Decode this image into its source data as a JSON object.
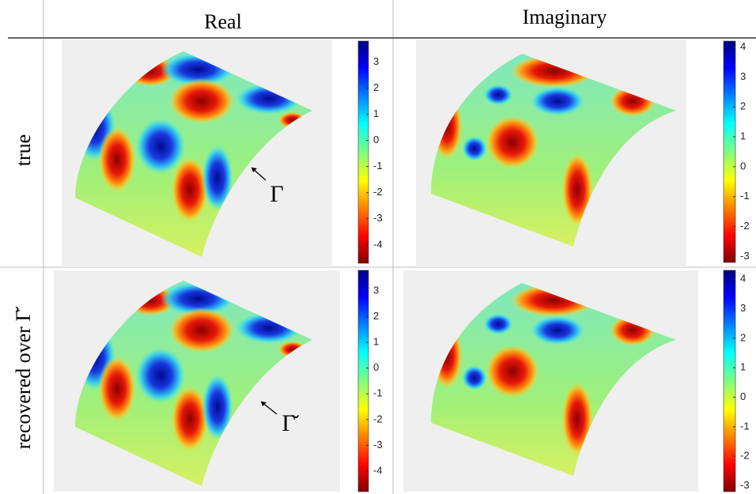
{
  "header": {
    "columns": [
      "Real",
      "Imaginary"
    ]
  },
  "rows": [
    "true",
    "recovered over Γ̆"
  ],
  "panels": [
    {
      "colorbar": {
        "clim": [
          -4.7,
          3.8
        ],
        "ticks": [
          3,
          2,
          1,
          0,
          -1,
          -2,
          -3,
          -4
        ]
      },
      "annotation": "Γ"
    },
    {
      "colorbar": {
        "clim": [
          -3.2,
          4.2
        ],
        "ticks": [
          4,
          3,
          2,
          1,
          0,
          -1,
          -2,
          -3
        ]
      }
    },
    {
      "colorbar": {
        "clim": [
          -4.8,
          3.8
        ],
        "ticks": [
          3,
          2,
          1,
          0,
          -1,
          -2,
          -3,
          -4
        ]
      },
      "annotation": "Γ̆"
    },
    {
      "colorbar": {
        "clim": [
          -3.2,
          4.3
        ],
        "ticks": [
          4,
          3,
          2,
          1,
          0,
          -1,
          -2,
          -3
        ]
      }
    }
  ]
}
